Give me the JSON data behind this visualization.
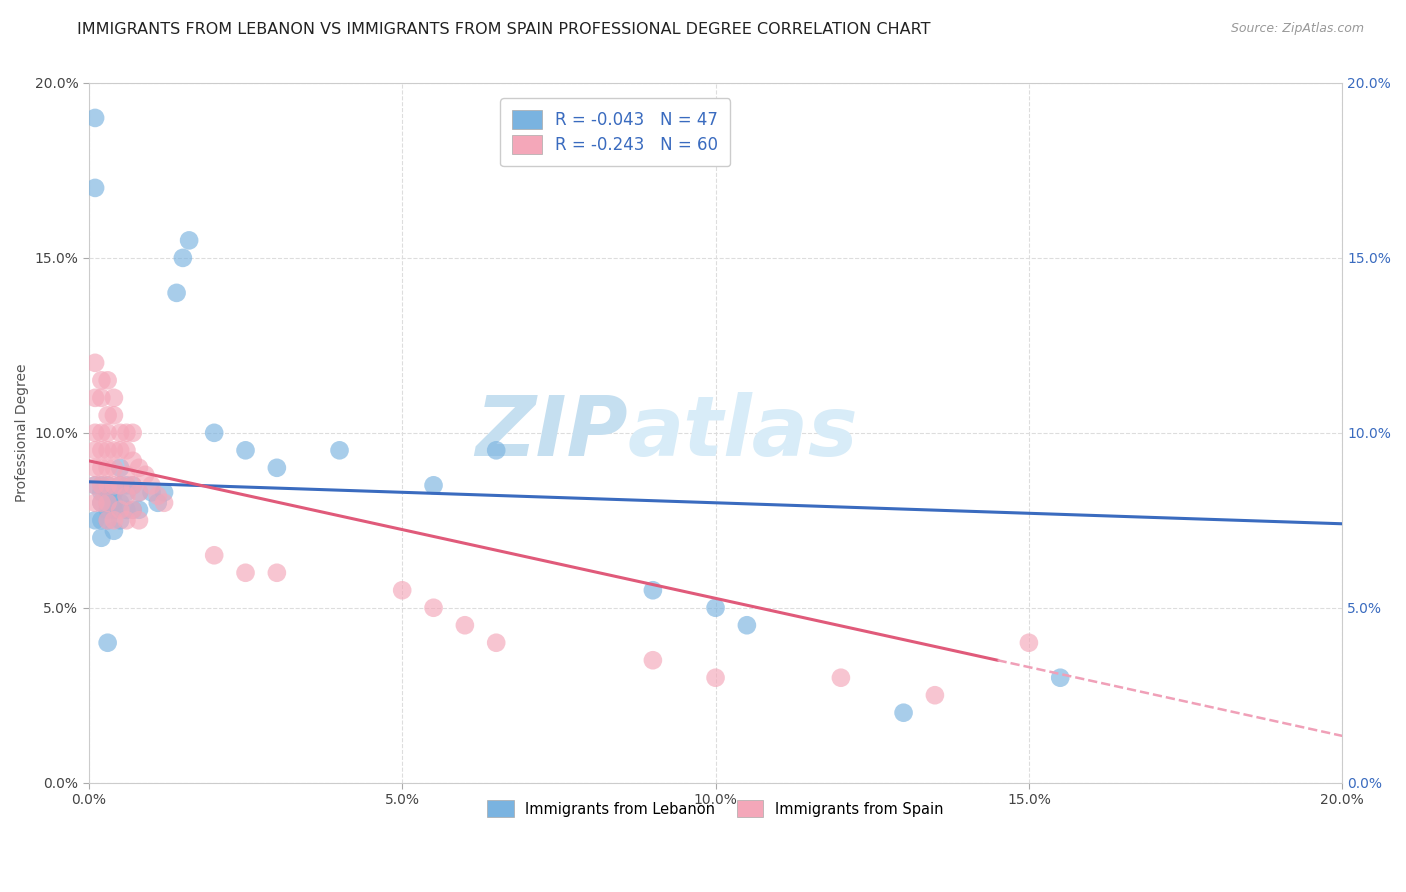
{
  "title": "IMMIGRANTS FROM LEBANON VS IMMIGRANTS FROM SPAIN PROFESSIONAL DEGREE CORRELATION CHART",
  "source": "Source: ZipAtlas.com",
  "ylabel": "Professional Degree",
  "watermark": "ZIPatlas",
  "xlim": [
    0.0,
    0.2
  ],
  "ylim": [
    0.0,
    0.2
  ],
  "xticks": [
    0.0,
    0.05,
    0.1,
    0.15,
    0.2
  ],
  "yticks": [
    0.0,
    0.05,
    0.1,
    0.15,
    0.2
  ],
  "xtick_labels": [
    "0.0%",
    "5.0%",
    "10.0%",
    "15.0%",
    "20.0%"
  ],
  "ytick_labels": [
    "0.0%",
    "5.0%",
    "10.0%",
    "15.0%",
    "20.0%"
  ],
  "lebanon_color": "#7ab3e0",
  "spain_color": "#f4a7b9",
  "lebanon_line_color": "#3a6bbf",
  "spain_line_color": "#e05a7a",
  "spain_dash_color": "#f0a0b8",
  "lebanon_R": -0.043,
  "lebanon_N": 47,
  "spain_R": -0.243,
  "spain_N": 60,
  "lebanon_x": [
    0.001,
    0.001,
    0.001,
    0.001,
    0.002,
    0.002,
    0.002,
    0.002,
    0.002,
    0.003,
    0.003,
    0.003,
    0.003,
    0.003,
    0.003,
    0.004,
    0.004,
    0.004,
    0.004,
    0.005,
    0.005,
    0.005,
    0.005,
    0.006,
    0.006,
    0.006,
    0.007,
    0.007,
    0.008,
    0.008,
    0.01,
    0.011,
    0.012,
    0.014,
    0.015,
    0.016,
    0.02,
    0.025,
    0.03,
    0.04,
    0.055,
    0.065,
    0.09,
    0.1,
    0.105,
    0.13,
    0.155
  ],
  "lebanon_y": [
    0.19,
    0.17,
    0.085,
    0.075,
    0.085,
    0.083,
    0.08,
    0.075,
    0.07,
    0.085,
    0.083,
    0.08,
    0.078,
    0.075,
    0.04,
    0.083,
    0.08,
    0.078,
    0.072,
    0.09,
    0.085,
    0.08,
    0.075,
    0.085,
    0.083,
    0.078,
    0.085,
    0.078,
    0.083,
    0.078,
    0.083,
    0.08,
    0.083,
    0.14,
    0.15,
    0.155,
    0.1,
    0.095,
    0.09,
    0.095,
    0.085,
    0.095,
    0.055,
    0.05,
    0.045,
    0.02,
    0.03
  ],
  "spain_x": [
    0.001,
    0.001,
    0.001,
    0.001,
    0.001,
    0.001,
    0.001,
    0.002,
    0.002,
    0.002,
    0.002,
    0.002,
    0.002,
    0.002,
    0.003,
    0.003,
    0.003,
    0.003,
    0.003,
    0.003,
    0.003,
    0.003,
    0.004,
    0.004,
    0.004,
    0.004,
    0.004,
    0.004,
    0.005,
    0.005,
    0.005,
    0.005,
    0.006,
    0.006,
    0.006,
    0.006,
    0.006,
    0.007,
    0.007,
    0.007,
    0.007,
    0.008,
    0.008,
    0.008,
    0.009,
    0.01,
    0.011,
    0.012,
    0.02,
    0.025,
    0.03,
    0.05,
    0.055,
    0.06,
    0.065,
    0.09,
    0.1,
    0.12,
    0.135,
    0.15
  ],
  "spain_y": [
    0.12,
    0.11,
    0.1,
    0.095,
    0.09,
    0.085,
    0.08,
    0.115,
    0.11,
    0.1,
    0.095,
    0.09,
    0.085,
    0.08,
    0.115,
    0.105,
    0.1,
    0.095,
    0.09,
    0.085,
    0.08,
    0.075,
    0.11,
    0.105,
    0.095,
    0.09,
    0.085,
    0.075,
    0.1,
    0.095,
    0.085,
    0.078,
    0.1,
    0.095,
    0.088,
    0.082,
    0.075,
    0.1,
    0.092,
    0.085,
    0.078,
    0.09,
    0.083,
    0.075,
    0.088,
    0.085,
    0.082,
    0.08,
    0.065,
    0.06,
    0.06,
    0.055,
    0.05,
    0.045,
    0.04,
    0.035,
    0.03,
    0.03,
    0.025,
    0.04
  ],
  "title_fontsize": 11.5,
  "axis_fontsize": 10,
  "tick_fontsize": 10,
  "legend_fontsize": 12,
  "watermark_fontsize": 60,
  "watermark_color": "#c8e0f0",
  "background_color": "#ffffff",
  "grid_color": "#dddddd"
}
